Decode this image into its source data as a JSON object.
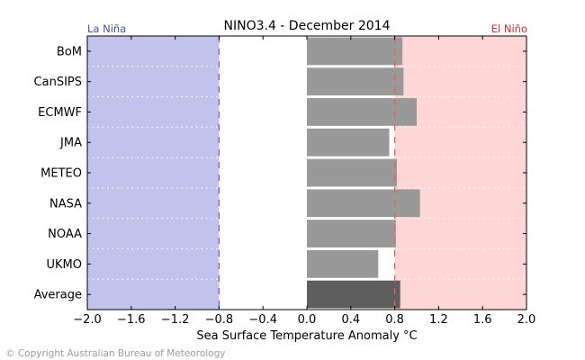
{
  "chart_data": {
    "type": "bar",
    "orientation": "horizontal",
    "title": "NINO3.4 - December 2014",
    "xlabel": "Sea Surface Temperature Anomaly °C",
    "ylabel": "",
    "xlim": [
      -2.0,
      2.0
    ],
    "xticks": [
      -2.0,
      -1.6,
      -1.2,
      -0.8,
      -0.4,
      0.0,
      0.4,
      0.8,
      1.2,
      1.6,
      2.0
    ],
    "xtick_labels": [
      "−2.0",
      "−1.6",
      "−1.2",
      "−0.8",
      "−0.4",
      "0.0",
      "0.4",
      "0.8",
      "1.2",
      "1.6",
      "2.0"
    ],
    "categories": [
      "BoM",
      "CanSIPS",
      "ECMWF",
      "JMA",
      "METEO",
      "NASA",
      "NOAA",
      "UKMO",
      "Average"
    ],
    "values": [
      0.87,
      0.88,
      1.0,
      0.75,
      0.82,
      1.03,
      0.81,
      0.65,
      0.85
    ],
    "thresholds": {
      "la_nina": -0.8,
      "el_nino": 0.8
    },
    "region_labels": {
      "la_nina": "La Niña",
      "el_nino": "El Niño"
    },
    "colors": {
      "la_nina_fill": "#c2c2ec",
      "el_nino_fill": "#ffd6d6",
      "bar": "#999999",
      "average_bar": "#5e5e5e",
      "la_nina_line": "#6a6ad0",
      "el_nino_line": "#e06060"
    },
    "grid": false
  },
  "footer": {
    "copyright": "© Copyright Australian Bureau of Meteorology"
  }
}
